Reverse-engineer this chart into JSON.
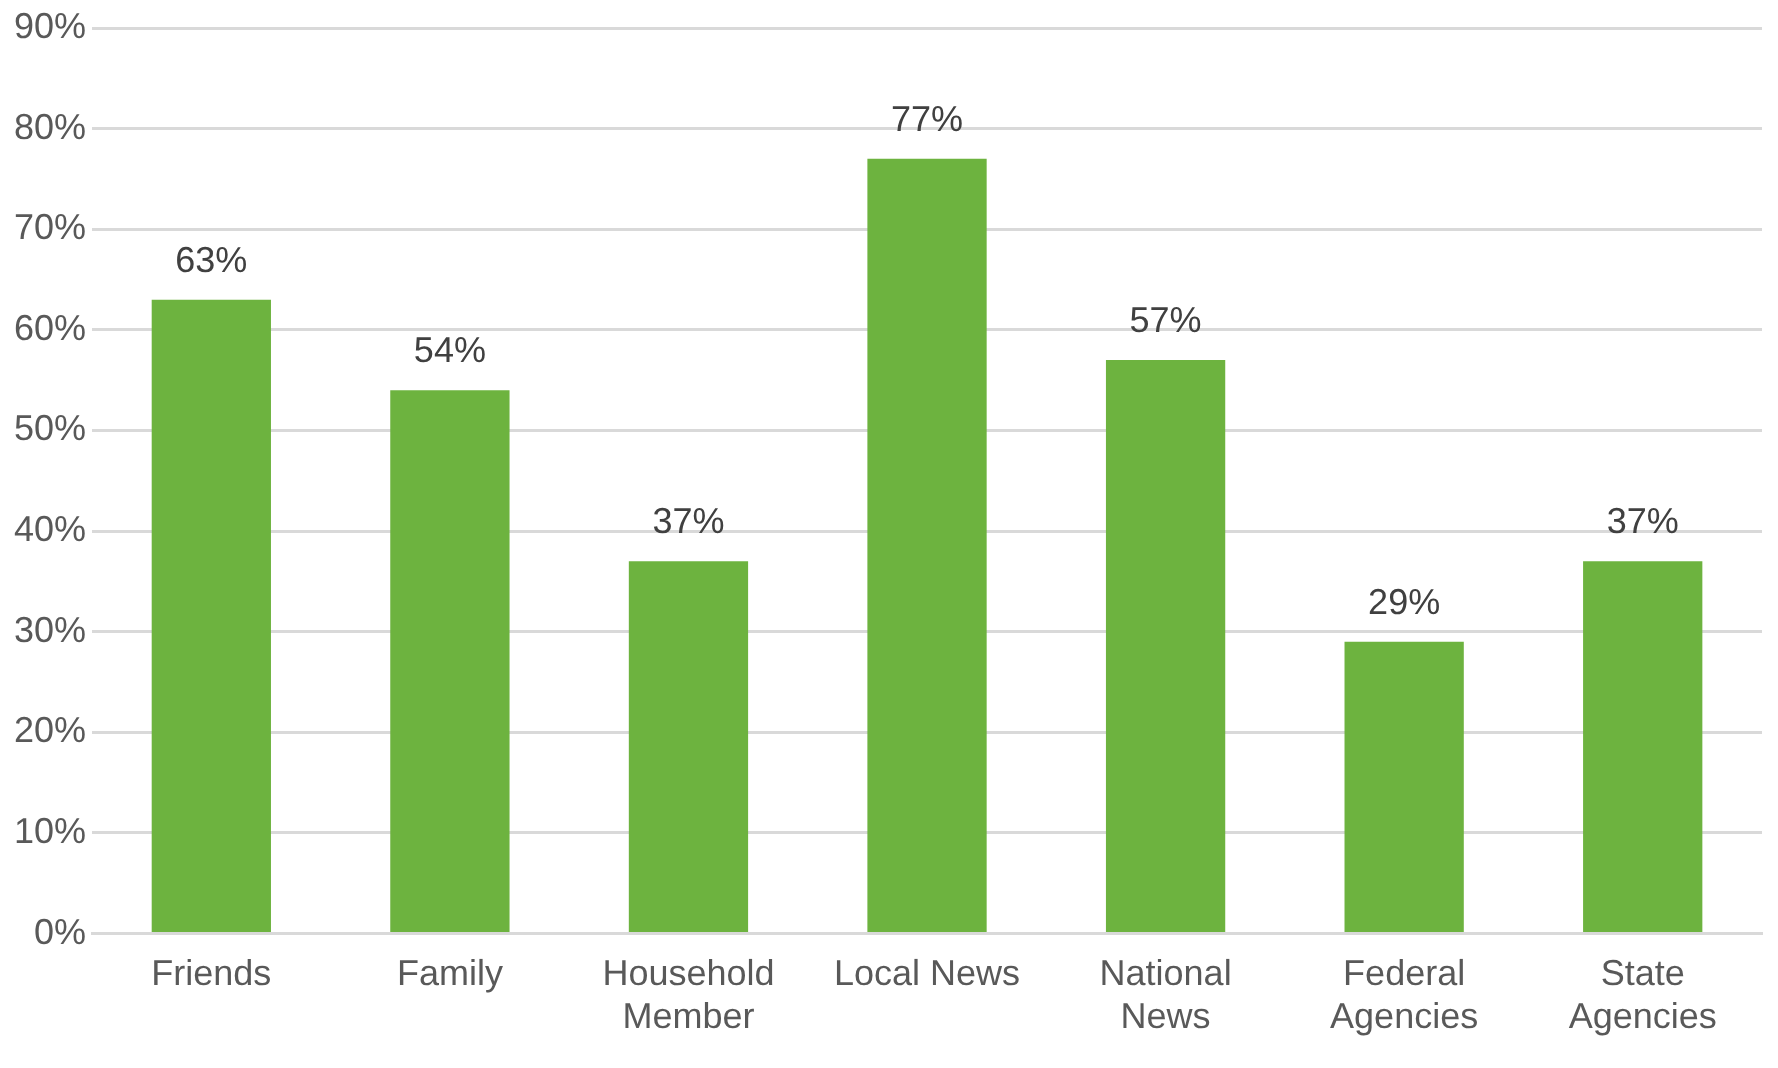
{
  "chart_data": {
    "type": "bar",
    "categories": [
      "Friends",
      "Family",
      "Household Member",
      "Local News",
      "National News",
      "Federal Agencies",
      "State Agencies"
    ],
    "values": [
      63,
      54,
      37,
      77,
      57,
      29,
      37
    ],
    "value_labels": [
      "63%",
      "54%",
      "37%",
      "77%",
      "57%",
      "29%",
      "37%"
    ],
    "color": "#6db33f",
    "ylim": [
      0,
      90
    ],
    "yticks": [
      {
        "value": 0,
        "label": "0%"
      },
      {
        "value": 10,
        "label": "10%"
      },
      {
        "value": 20,
        "label": "20%"
      },
      {
        "value": 30,
        "label": "30%"
      },
      {
        "value": 40,
        "label": "40%"
      },
      {
        "value": 50,
        "label": "50%"
      },
      {
        "value": 60,
        "label": "60%"
      },
      {
        "value": 70,
        "label": "70%"
      },
      {
        "value": 80,
        "label": "80%"
      },
      {
        "value": 90,
        "label": "90%"
      }
    ],
    "grid": "y",
    "legend": false
  }
}
